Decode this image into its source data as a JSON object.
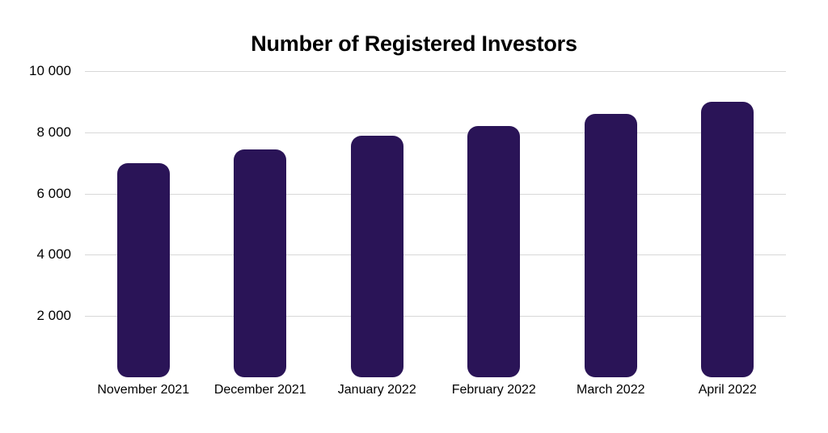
{
  "chart_data": {
    "type": "bar",
    "title": "Number of Registered Investors",
    "categories": [
      "November 2021",
      "December 2021",
      "January 2022",
      "February 2022",
      "March 2022",
      "April 2022"
    ],
    "values": [
      7000,
      7450,
      7900,
      8200,
      8600,
      9000
    ],
    "xlabel": "",
    "ylabel": "",
    "ylim": [
      0,
      10000
    ],
    "yticks": [
      10000,
      8000,
      6000,
      4000,
      2000
    ],
    "ytick_labels": [
      "10 000",
      "8 000",
      "6 000",
      "4 000",
      "2 000"
    ],
    "grid": true,
    "legend": false,
    "bar_color": "#2a1457",
    "gridline_color": "#d8d8d8",
    "text_color": "#000000",
    "background": "#ffffff"
  }
}
